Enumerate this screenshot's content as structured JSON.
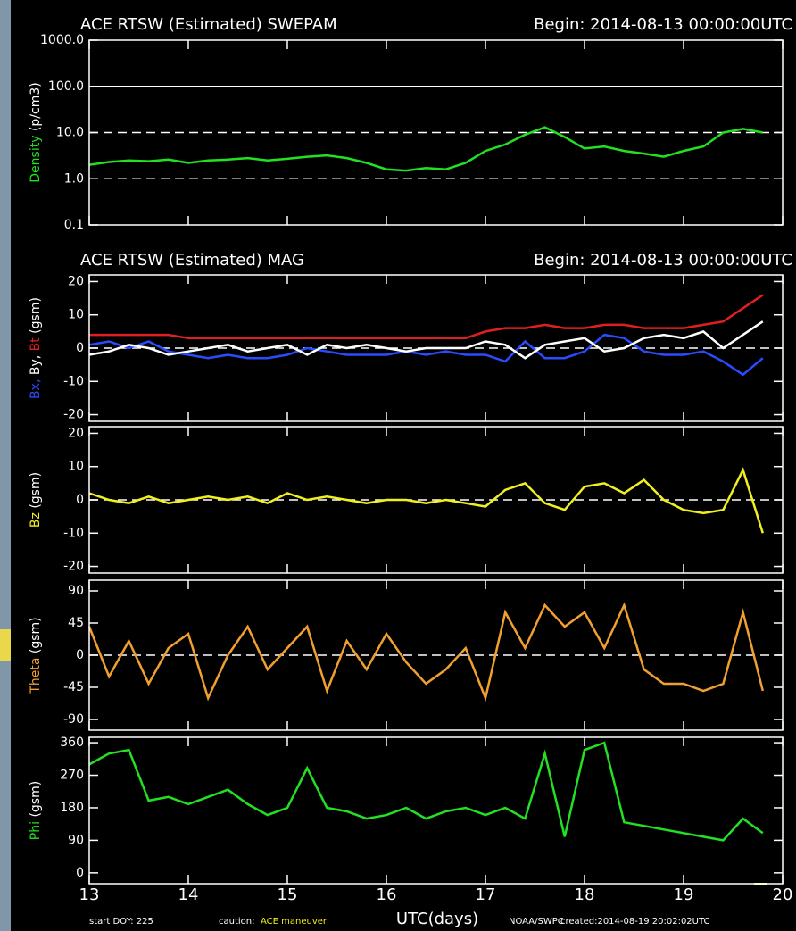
{
  "chart_data": [
    {
      "type": "line",
      "title": "ACE RTSW (Estimated) SWEPAM",
      "subtitle": "Begin: 2014-08-13 00:00:00UTC",
      "ylabel": "(p/cm3)",
      "log_scale": true,
      "ylim": [
        0.1,
        1000
      ],
      "yticks": [
        {
          "value": 1000,
          "label": "1000.0"
        },
        {
          "value": 100,
          "label": "100.0"
        },
        {
          "value": 10,
          "label": "10.0"
        },
        {
          "value": 1,
          "label": "1.0"
        },
        {
          "value": 0.1,
          "label": "0.1"
        }
      ],
      "reference_lines": [
        {
          "value": 100,
          "dashed": false
        },
        {
          "value": 10,
          "dashed": true
        },
        {
          "value": 1,
          "dashed": true
        }
      ],
      "xlim": [
        13,
        20
      ],
      "xticks": [
        13,
        14,
        15,
        16,
        17,
        18,
        19,
        20
      ],
      "x": [
        13,
        13.2,
        13.4,
        13.6,
        13.8,
        14,
        14.2,
        14.4,
        14.6,
        14.8,
        15,
        15.2,
        15.4,
        15.6,
        15.8,
        16,
        16.2,
        16.4,
        16.6,
        16.8,
        17,
        17.2,
        17.4,
        17.6,
        17.8,
        18,
        18.2,
        18.4,
        18.6,
        18.8,
        19,
        19.2,
        19.4,
        19.6,
        19.8
      ],
      "series": [
        {
          "name": "Density",
          "color": "#22e022",
          "values": [
            2,
            2.3,
            2.5,
            2.4,
            2.6,
            2.2,
            2.5,
            2.6,
            2.8,
            2.5,
            2.7,
            3,
            3.2,
            2.8,
            2.2,
            1.6,
            1.5,
            1.7,
            1.6,
            2.2,
            4,
            5.5,
            9,
            13,
            8,
            4.5,
            5,
            4,
            3.5,
            3,
            4,
            5,
            10,
            12,
            10
          ]
        }
      ]
    },
    {
      "type": "line",
      "title": "ACE RTSW (Estimated) MAG",
      "subtitle": "Begin: 2014-08-13 00:00:00UTC",
      "ylabel": "(gsm)",
      "ylim": [
        -22,
        22
      ],
      "yticks": [
        20,
        10,
        0,
        -10,
        -20
      ],
      "reference_lines": [
        {
          "value": 0,
          "dashed": true
        }
      ],
      "xlim": [
        13,
        20
      ],
      "xticks": [
        13,
        14,
        15,
        16,
        17,
        18,
        19,
        20
      ],
      "x": [
        13,
        13.2,
        13.4,
        13.6,
        13.8,
        14,
        14.2,
        14.4,
        14.6,
        14.8,
        15,
        15.2,
        15.4,
        15.6,
        15.8,
        16,
        16.2,
        16.4,
        16.6,
        16.8,
        17,
        17.2,
        17.4,
        17.6,
        17.8,
        18,
        18.2,
        18.4,
        18.6,
        18.8,
        19,
        19.2,
        19.4,
        19.6,
        19.8
      ],
      "series": [
        {
          "name": "Bx,",
          "color": "#2a4cff",
          "values": [
            1,
            2,
            0,
            2,
            -1,
            -2,
            -3,
            -2,
            -3,
            -3,
            -2,
            0,
            -1,
            -2,
            -2,
            -2,
            -1,
            -2,
            -1,
            -2,
            -2,
            -4,
            2,
            -3,
            -3,
            -1,
            4,
            3,
            -1,
            -2,
            -2,
            -1,
            -4,
            -8,
            -3
          ]
        },
        {
          "name": "By,",
          "color": "#ffffff",
          "values": [
            -2,
            -1,
            1,
            0,
            -2,
            -1,
            0,
            1,
            -1,
            0,
            1,
            -2,
            1,
            0,
            1,
            0,
            -1,
            0,
            0,
            0,
            2,
            1,
            -3,
            1,
            2,
            3,
            -1,
            0,
            3,
            4,
            3,
            5,
            0,
            4,
            8
          ]
        },
        {
          "name": "Bt",
          "color": "#e02020",
          "values": [
            4,
            4,
            4,
            4,
            4,
            3,
            3,
            3,
            3,
            3,
            3,
            3,
            3,
            3,
            3,
            3,
            3,
            3,
            3,
            3,
            5,
            6,
            6,
            7,
            6,
            6,
            7,
            7,
            6,
            6,
            6,
            7,
            8,
            12,
            16
          ]
        }
      ]
    },
    {
      "type": "line",
      "ylabel": "(gsm)",
      "ylim": [
        -22,
        22
      ],
      "yticks": [
        20,
        10,
        0,
        -10,
        -20
      ],
      "reference_lines": [
        {
          "value": 0,
          "dashed": true
        }
      ],
      "xlim": [
        13,
        20
      ],
      "xticks": [
        13,
        14,
        15,
        16,
        17,
        18,
        19,
        20
      ],
      "x": [
        13,
        13.2,
        13.4,
        13.6,
        13.8,
        14,
        14.2,
        14.4,
        14.6,
        14.8,
        15,
        15.2,
        15.4,
        15.6,
        15.8,
        16,
        16.2,
        16.4,
        16.6,
        16.8,
        17,
        17.2,
        17.4,
        17.6,
        17.8,
        18,
        18.2,
        18.4,
        18.6,
        18.8,
        19,
        19.2,
        19.4,
        19.6,
        19.8
      ],
      "series": [
        {
          "name": "Bz",
          "color": "#f0f020",
          "values": [
            2,
            0,
            -1,
            1,
            -1,
            0,
            1,
            0,
            1,
            -1,
            2,
            0,
            1,
            0,
            -1,
            0,
            0,
            -1,
            0,
            -1,
            -2,
            3,
            5,
            -1,
            -3,
            4,
            5,
            2,
            6,
            0,
            -3,
            -4,
            -3,
            9,
            -10
          ]
        }
      ]
    },
    {
      "type": "line",
      "ylabel": "(gsm)",
      "ylim": [
        -105,
        105
      ],
      "yticks": [
        90,
        45,
        0,
        -45,
        -90
      ],
      "reference_lines": [
        {
          "value": 0,
          "dashed": true
        }
      ],
      "xlim": [
        13,
        20
      ],
      "xticks": [
        13,
        14,
        15,
        16,
        17,
        18,
        19,
        20
      ],
      "x": [
        13,
        13.2,
        13.4,
        13.6,
        13.8,
        14,
        14.2,
        14.4,
        14.6,
        14.8,
        15,
        15.2,
        15.4,
        15.6,
        15.8,
        16,
        16.2,
        16.4,
        16.6,
        16.8,
        17,
        17.2,
        17.4,
        17.6,
        17.8,
        18,
        18.2,
        18.4,
        18.6,
        18.8,
        19,
        19.2,
        19.4,
        19.6,
        19.8
      ],
      "series": [
        {
          "name": "Theta",
          "color": "#f0a030",
          "values": [
            40,
            -30,
            20,
            -40,
            10,
            30,
            -60,
            0,
            40,
            -20,
            10,
            40,
            -50,
            20,
            -20,
            30,
            -10,
            -40,
            -20,
            10,
            -60,
            60,
            10,
            70,
            40,
            60,
            10,
            70,
            -20,
            -40,
            -40,
            -50,
            -40,
            60,
            -50
          ]
        }
      ]
    },
    {
      "type": "line",
      "ylabel": "(gsm)",
      "ylim": [
        -30,
        375
      ],
      "yticks": [
        360,
        270,
        180,
        90,
        0
      ],
      "xlim": [
        13,
        20
      ],
      "xticks": [
        13,
        14,
        15,
        16,
        17,
        18,
        19,
        20
      ],
      "xlabel": "UTC(days)",
      "x": [
        13,
        13.2,
        13.4,
        13.6,
        13.8,
        14,
        14.2,
        14.4,
        14.6,
        14.8,
        15,
        15.2,
        15.4,
        15.6,
        15.8,
        16,
        16.2,
        16.4,
        16.6,
        16.8,
        17,
        17.2,
        17.4,
        17.6,
        17.8,
        18,
        18.2,
        18.4,
        18.6,
        18.8,
        19,
        19.2,
        19.4,
        19.6,
        19.8
      ],
      "series": [
        {
          "name": "Phi",
          "color": "#22e022",
          "values": [
            300,
            330,
            340,
            200,
            210,
            190,
            210,
            230,
            190,
            160,
            180,
            290,
            180,
            170,
            150,
            160,
            180,
            150,
            170,
            180,
            160,
            180,
            150,
            330,
            100,
            340,
            360,
            140,
            130,
            120,
            110,
            100,
            90,
            150,
            110
          ]
        }
      ]
    }
  ],
  "footer": {
    "start": "start DOY:  225",
    "caution": "caution:",
    "note": "ACE maneuver",
    "source": "NOAA/SWPC",
    "created": "created:2014-08-19 20:02:02UTC"
  }
}
